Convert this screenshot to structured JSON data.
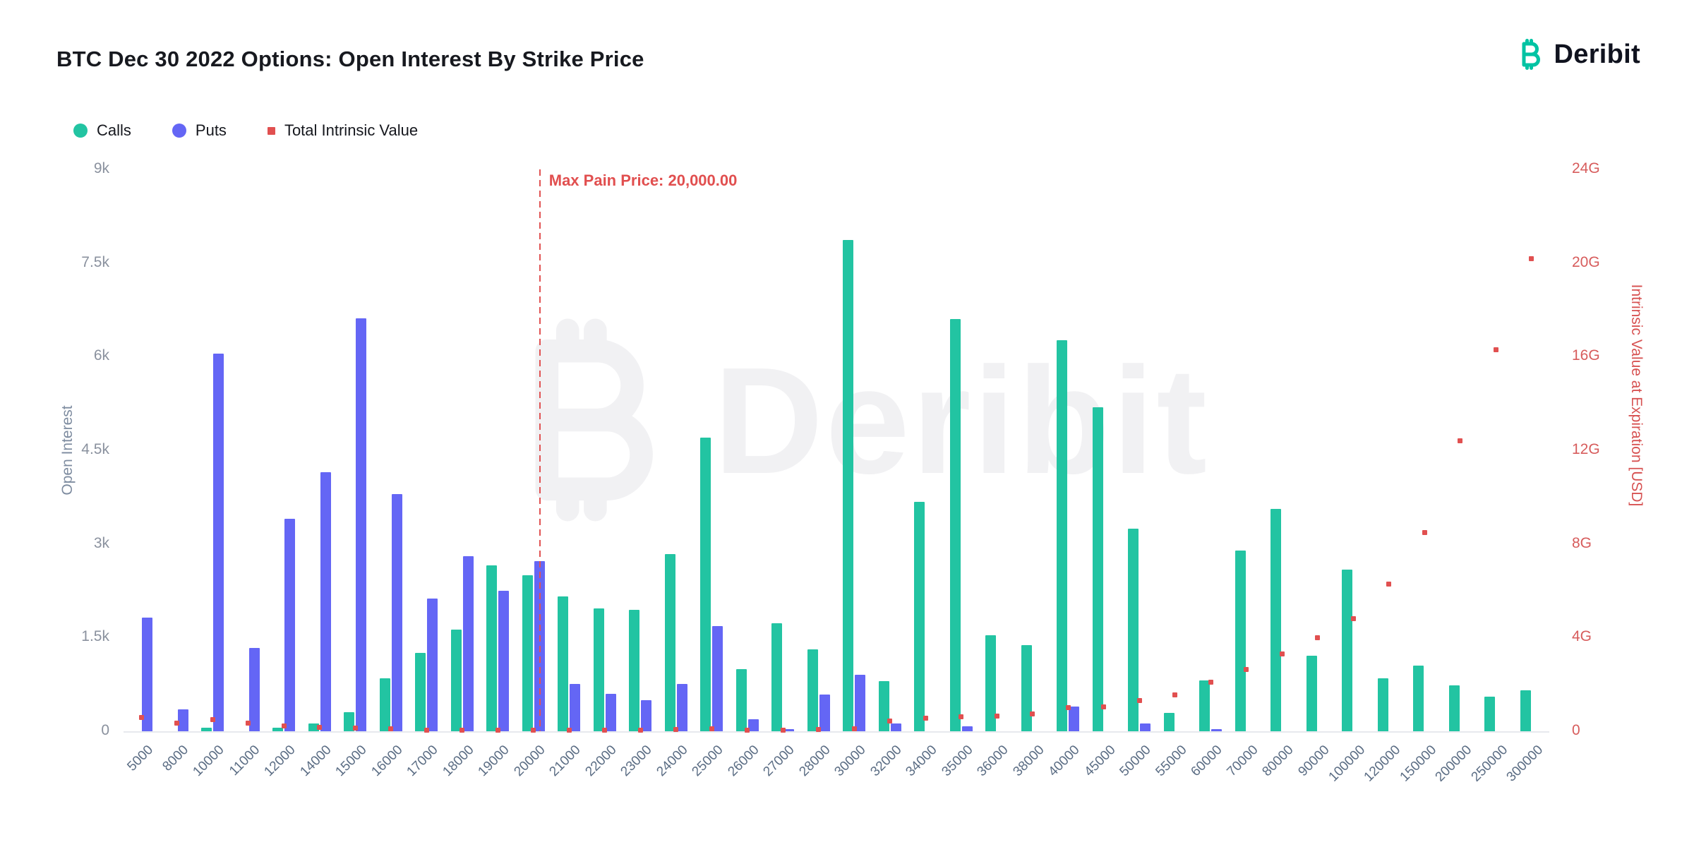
{
  "title": "BTC Dec 30 2022 Options: Open Interest By Strike Price",
  "brand": {
    "name": "Deribit"
  },
  "watermark": "Deribit",
  "legend": [
    {
      "label": "Calls",
      "color": "#22C4A2",
      "shape": "circle"
    },
    {
      "label": "Puts",
      "color": "#6466F5",
      "shape": "circle"
    },
    {
      "label": "Total Intrinsic Value",
      "color": "#E15050",
      "shape": "square"
    }
  ],
  "annotation": {
    "max_pain_label": "Max Pain Price: 20,000.00",
    "strike": "20000"
  },
  "chart_data": {
    "type": "bar",
    "title": "BTC Dec 30 2022 Options: Open Interest By Strike Price",
    "categories": [
      "5000",
      "8000",
      "10000",
      "11000",
      "12000",
      "14000",
      "15000",
      "16000",
      "17000",
      "18000",
      "19000",
      "20000",
      "21000",
      "22000",
      "23000",
      "24000",
      "25000",
      "26000",
      "27000",
      "28000",
      "30000",
      "32000",
      "34000",
      "35000",
      "36000",
      "38000",
      "40000",
      "45000",
      "50000",
      "55000",
      "60000",
      "70000",
      "80000",
      "90000",
      "100000",
      "120000",
      "150000",
      "200000",
      "250000",
      "300000"
    ],
    "series": [
      {
        "name": "Calls",
        "type": "bar",
        "axis": "left",
        "color": "#22C4A2",
        "values": [
          0,
          0,
          60,
          0,
          60,
          120,
          300,
          850,
          1260,
          1630,
          2660,
          2500,
          2160,
          1970,
          1950,
          2840,
          4700,
          1000,
          1730,
          1310,
          7870,
          800,
          3670,
          6600,
          1540,
          1380,
          6260,
          5190,
          3250,
          290,
          810,
          2900,
          3560,
          1210,
          2590,
          850,
          1050,
          740,
          550,
          660
        ]
      },
      {
        "name": "Puts",
        "type": "bar",
        "axis": "left",
        "color": "#6466F5",
        "values": [
          1820,
          350,
          6050,
          1330,
          3400,
          4150,
          6620,
          3800,
          2130,
          2800,
          2250,
          2730,
          760,
          600,
          500,
          760,
          1680,
          190,
          30,
          590,
          900,
          120,
          0,
          80,
          0,
          0,
          400,
          0,
          120,
          0,
          30,
          0,
          0,
          0,
          0,
          0,
          0,
          0,
          0,
          0
        ]
      },
      {
        "name": "Total Intrinsic Value",
        "type": "scatter",
        "axis": "right",
        "color": "#E15050",
        "unit": "G",
        "values": [
          0.6,
          0.35,
          0.5,
          0.35,
          0.22,
          0.17,
          0.13,
          0.1,
          0.06,
          0.05,
          0.05,
          0.05,
          0.05,
          0.05,
          0.06,
          0.08,
          0.12,
          0.05,
          0.06,
          0.08,
          0.12,
          0.45,
          0.55,
          0.62,
          0.66,
          0.75,
          1.0,
          1.05,
          1.3,
          1.55,
          2.1,
          2.65,
          3.3,
          4.0,
          4.8,
          6.3,
          8.5,
          12.4,
          16.3,
          20.2
        ]
      }
    ],
    "left_axis": {
      "label": "Open Interest",
      "min": 0,
      "max": 9000,
      "ticks": [
        "0",
        "1.5k",
        "3k",
        "4.5k",
        "6k",
        "7.5k",
        "9k"
      ]
    },
    "right_axis": {
      "label": "Intrinsic Value at Expiration [USD]",
      "min": 0,
      "max": 24,
      "ticks": [
        "0",
        "4G",
        "8G",
        "12G",
        "16G",
        "20G",
        "24G"
      ]
    },
    "x_axis": {
      "label": "",
      "tick_rotation": -45
    },
    "grid": false,
    "legend_position": "top-left",
    "max_pain": {
      "strike": 20000,
      "label": "Max Pain Price: 20,000.00"
    }
  }
}
